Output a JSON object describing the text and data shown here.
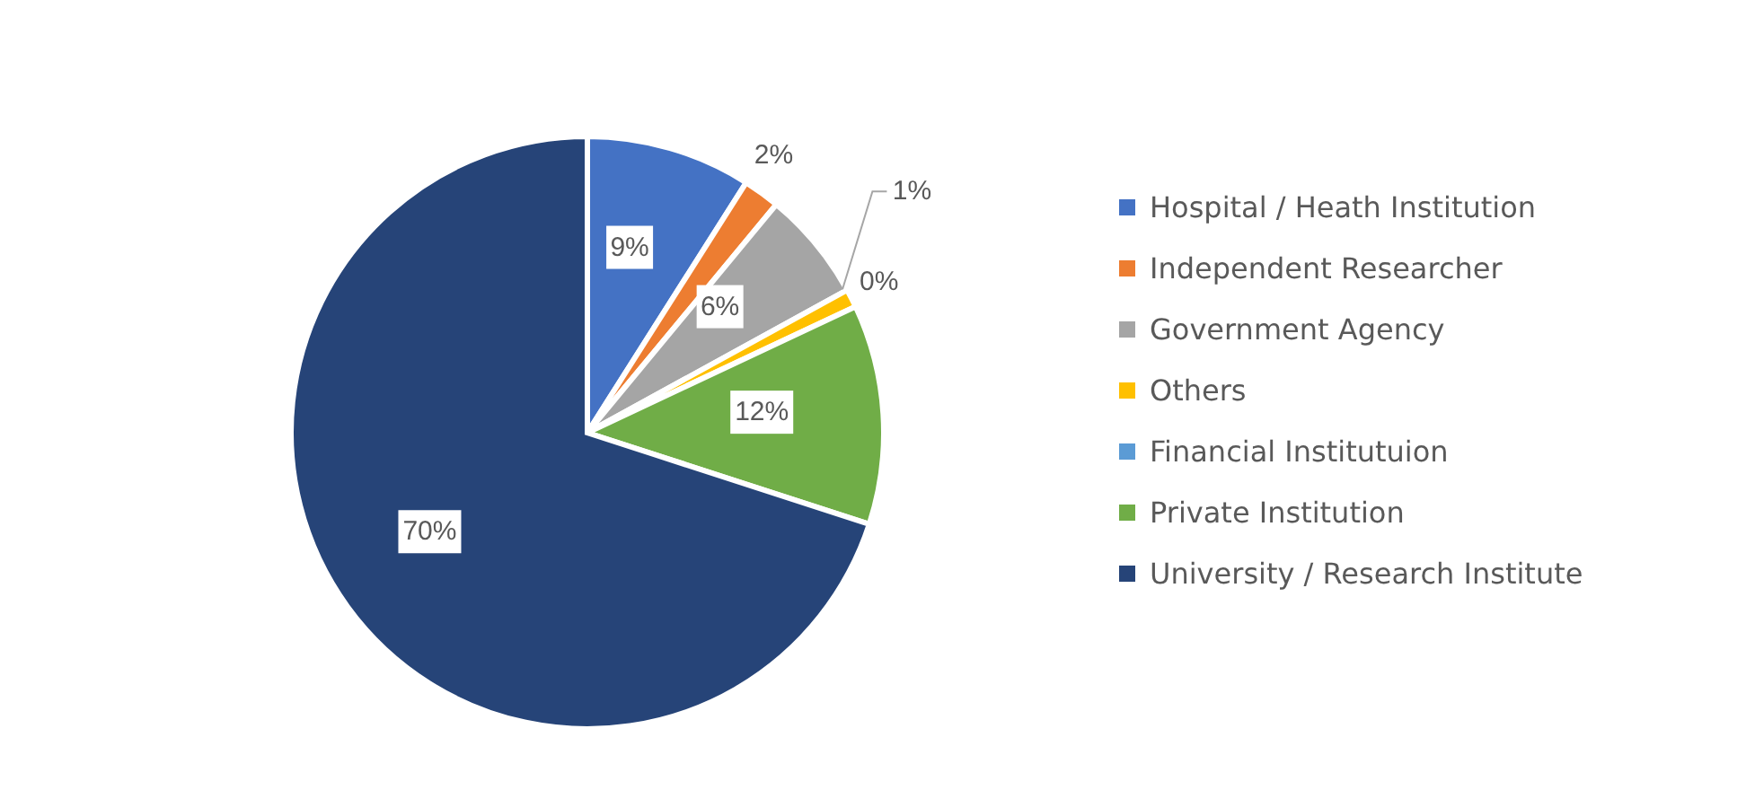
{
  "chart_data": {
    "type": "pie",
    "categories": [
      "Hospital / Heath Institution",
      "Independent Researcher",
      "Government Agency",
      "Others",
      "Financial Institutuion",
      "Private Institution",
      "University / Research Institute"
    ],
    "values": [
      9,
      2,
      6,
      1,
      0,
      12,
      70
    ],
    "colors": [
      "#4472c4",
      "#ed7d31",
      "#a5a5a5",
      "#ffc000",
      "#5b9bd5",
      "#70ad47",
      "#264478"
    ],
    "value_labels": [
      "9%",
      "2%",
      "6%",
      "1%",
      "0%",
      "12%",
      "70%"
    ],
    "legend": "right"
  }
}
